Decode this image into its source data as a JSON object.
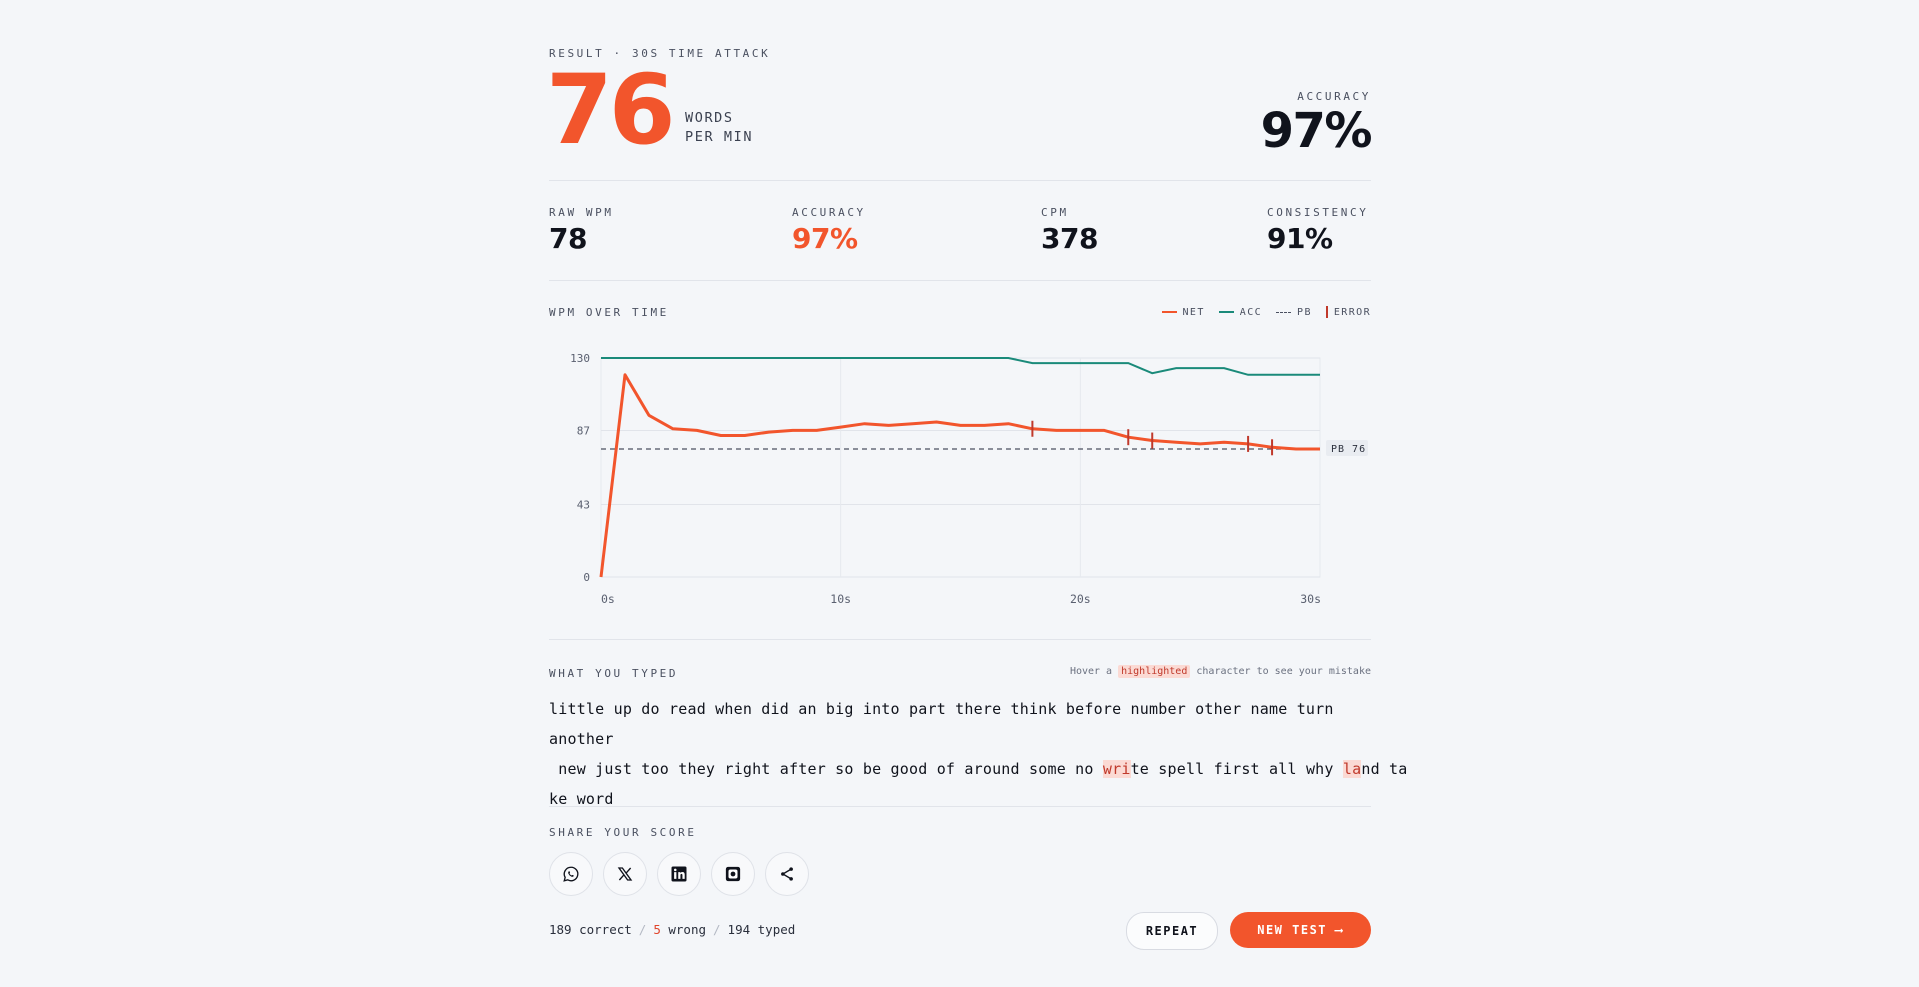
{
  "header": {
    "result_label": "RESULT · 30S TIME ATTACK",
    "wpm": "76",
    "wpm_unit_line1": "WORDS",
    "wpm_unit_line2": "PER MIN",
    "accuracy_label": "ACCURACY",
    "accuracy_value": "97%"
  },
  "stats": [
    {
      "label": "RAW WPM",
      "value": "78"
    },
    {
      "label": "ACCURACY",
      "value": "97%"
    },
    {
      "label": "CPM",
      "value": "378"
    },
    {
      "label": "CONSISTENCY",
      "value": "91%"
    }
  ],
  "chart": {
    "title": "WPM OVER TIME",
    "legend": {
      "net": "NET",
      "acc": "ACC",
      "pb": "PB",
      "error": "ERROR"
    },
    "pb_label": "PB 76",
    "colors": {
      "net": "#f2552c",
      "acc": "#1a8a7a",
      "pb": "#4a5060",
      "error": "#c0392b"
    }
  },
  "chart_data": {
    "type": "line",
    "x_ticks": [
      "0s",
      "10s",
      "20s",
      "30s"
    ],
    "y_ticks": [
      "0",
      "43",
      "87",
      "130"
    ],
    "xlim": [
      0,
      30
    ],
    "ylim": [
      0,
      130
    ],
    "grid": true,
    "series": [
      {
        "name": "NET",
        "x": [
          0,
          1,
          2,
          3,
          4,
          5,
          6,
          7,
          8,
          9,
          10,
          11,
          12,
          13,
          14,
          15,
          16,
          17,
          18,
          19,
          20,
          21,
          22,
          23,
          24,
          25,
          26,
          27,
          28,
          29,
          30
        ],
        "values": [
          0,
          120,
          96,
          88,
          87,
          84,
          84,
          86,
          87,
          87,
          89,
          91,
          90,
          91,
          92,
          90,
          90,
          91,
          88,
          87,
          87,
          87,
          83,
          81,
          80,
          79,
          80,
          79,
          77,
          76,
          76
        ]
      },
      {
        "name": "ACC",
        "x": [
          0,
          17,
          18,
          21,
          22,
          23,
          24,
          26,
          27,
          30
        ],
        "values": [
          130,
          130,
          127,
          127,
          127,
          121,
          124,
          124,
          120,
          120
        ]
      },
      {
        "name": "PB",
        "x": [
          0,
          30
        ],
        "values": [
          76,
          76
        ]
      }
    ],
    "errors_x": [
      18,
      22,
      23,
      27,
      28
    ]
  },
  "typed": {
    "title": "WHAT YOU TYPED",
    "hint_prefix": "Hover a",
    "hint_highlight": "highlighted",
    "hint_suffix": "character to see your mistake",
    "line1": "little up do read when did an big into part there think before number other name turn another",
    "line2_a": " new just too they right after so be good of around some no ",
    "line2_err1": "wri",
    "line2_b": "te spell first all why ",
    "line2_err2": "la",
    "line2_c": "nd ta",
    "line3": "ke word"
  },
  "share": {
    "title": "SHARE YOUR SCORE",
    "icons": [
      "whatsapp-icon",
      "x-icon",
      "linkedin-icon",
      "instagram-icon",
      "share-icon"
    ]
  },
  "footer": {
    "correct": "189 correct",
    "wrong_n": "5",
    "wrong_label": " wrong",
    "typed": "194 typed",
    "repeat_label": "REPEAT",
    "new_test_label": "NEW TEST",
    "new_test_arrow": "⟶"
  }
}
